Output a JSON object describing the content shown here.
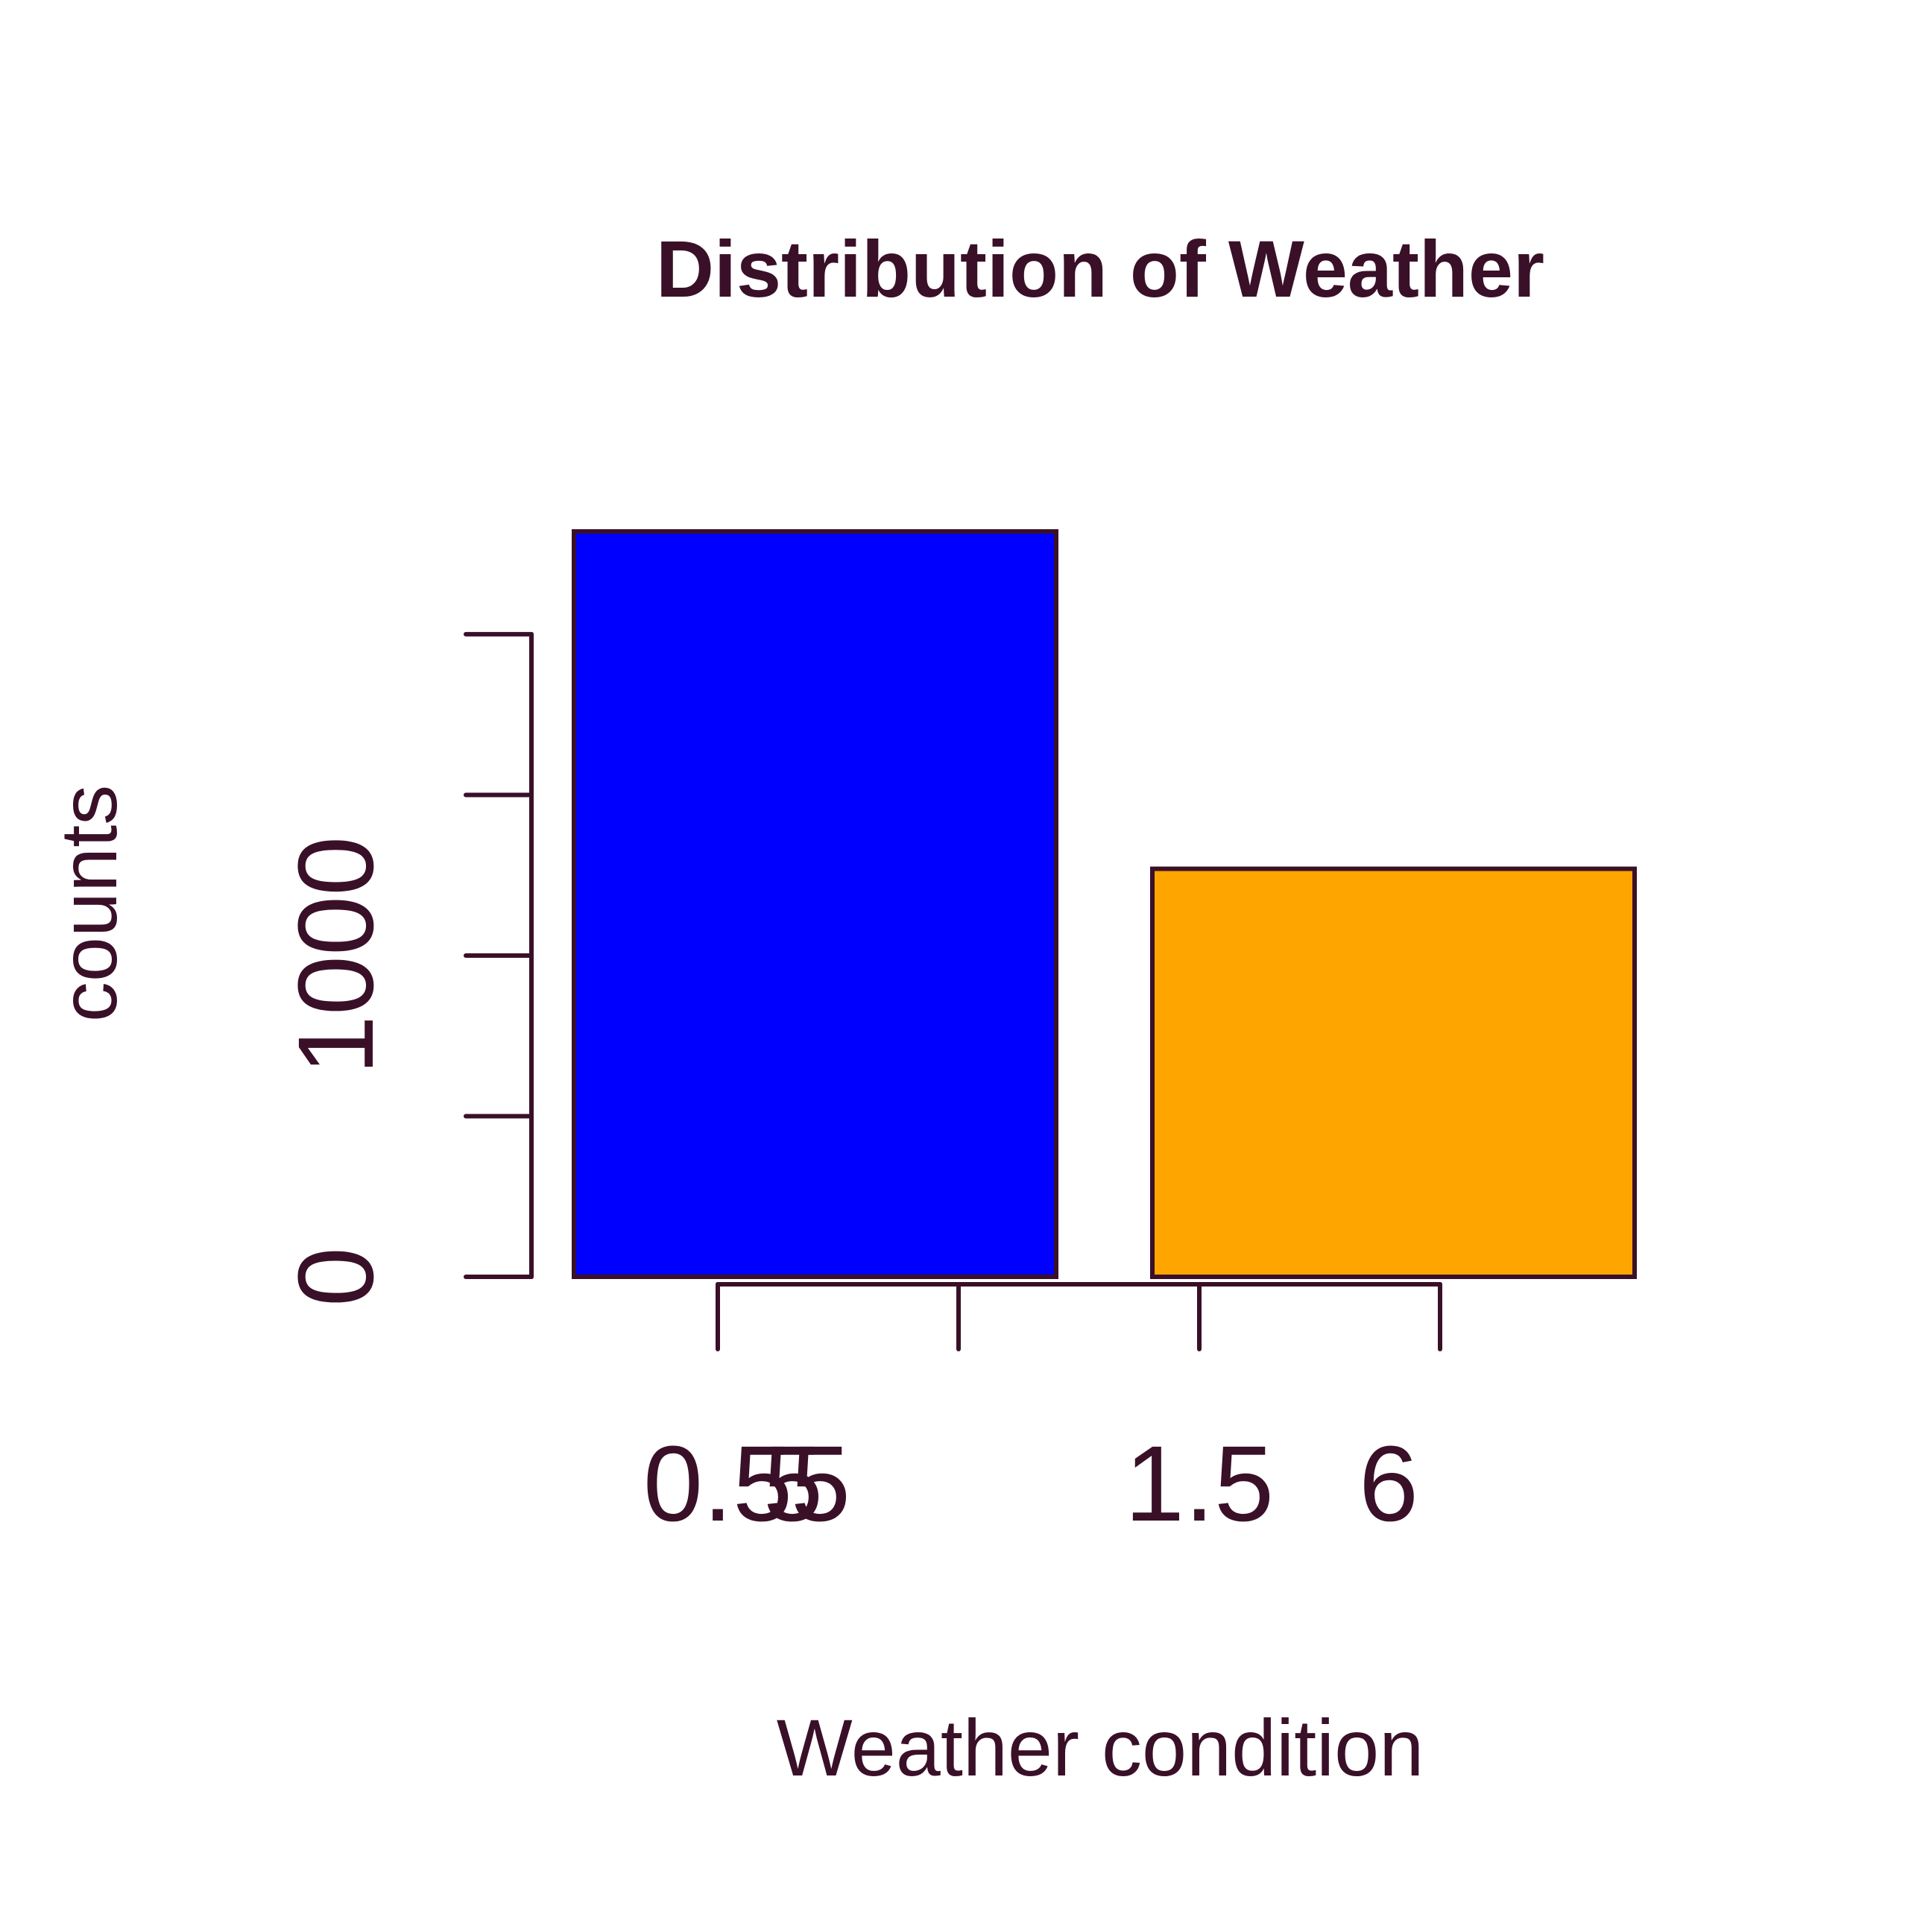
{
  "colors": {
    "ink": "#3a1028",
    "background": "#ffffff"
  },
  "chart_data": {
    "type": "bar",
    "title": "Distribution of Weather",
    "xlabel": "Weather condition",
    "ylabel": "counts",
    "categories": [
      "",
      ""
    ],
    "values": [
      2320,
      1270
    ],
    "bar_colors": [
      "#0000ff",
      "#ffa500"
    ],
    "ylim": [
      0,
      2320
    ],
    "y_axis": {
      "range": [
        0,
        2000
      ],
      "ticks": [
        0,
        500,
        1000,
        1500,
        2000
      ],
      "tick_labels": [
        "0",
        "",
        "1000",
        "",
        ""
      ]
    },
    "x_axis": {
      "ticks": [
        1,
        2,
        3,
        4
      ],
      "tick_labels": [
        "0.5",
        "5",
        "1.5",
        "6"
      ],
      "secondary_tick_labels": [
        "5",
        "",
        "",
        ""
      ]
    },
    "grid": false,
    "legend": "none"
  }
}
